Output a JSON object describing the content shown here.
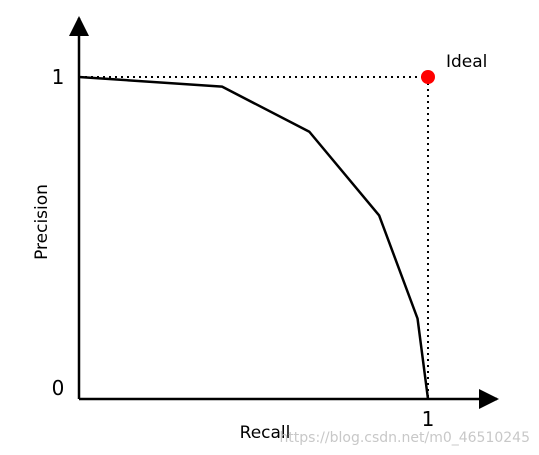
{
  "chart_data": {
    "type": "line",
    "title": "",
    "xlabel": "Recall",
    "ylabel": "Precision",
    "xlim": [
      0,
      1
    ],
    "ylim": [
      0,
      1
    ],
    "x_tick_labels": [
      "1"
    ],
    "y_tick_labels": [
      "0",
      "1"
    ],
    "grid": false,
    "series": [
      {
        "x": [
          0.0,
          0.41,
          0.66,
          0.86,
          0.97,
          1.0
        ],
        "y": [
          1.0,
          0.97,
          0.83,
          0.57,
          0.25,
          0.0
        ],
        "color": "#000000"
      }
    ],
    "annotations": [
      {
        "label": "Ideal",
        "x": 1,
        "y": 1,
        "marker_color": "#ff0000"
      }
    ],
    "reference_lines": "dotted lines from (0,1) to (1,1) and from (1,1) to (1,0)"
  },
  "watermark": "https://blog.csdn.net/m0_46510245"
}
